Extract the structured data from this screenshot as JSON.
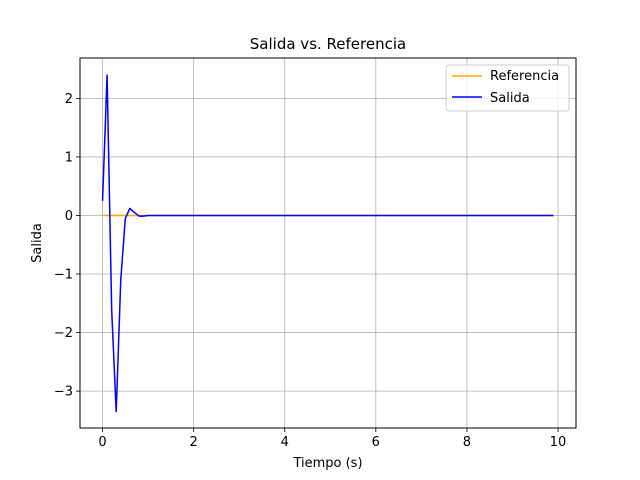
{
  "chart_data": {
    "type": "line",
    "title": "Salida vs. Referencia",
    "xlabel": "Tiempo (s)",
    "ylabel": "Salida",
    "xlim": [
      -0.495,
      10.395
    ],
    "ylim": [
      -3.63,
      2.69
    ],
    "xticks": [
      0,
      2,
      4,
      6,
      8,
      10
    ],
    "yticks": [
      -3,
      -2,
      -1,
      0,
      1,
      2
    ],
    "xtick_labels": [
      "0",
      "2",
      "4",
      "6",
      "8",
      "10"
    ],
    "ytick_labels": [
      "−3",
      "−2",
      "−1",
      "0",
      "1",
      "2"
    ],
    "grid": true,
    "legend_position": "top-right",
    "series": [
      {
        "name": "Referencia",
        "color": "#ffa500",
        "x": [
          0,
          0.1,
          0.2,
          0.3,
          0.4,
          0.5,
          0.6,
          0.7,
          0.8,
          0.9,
          1.0,
          9.9
        ],
        "y": [
          0,
          0,
          0,
          0,
          0,
          0,
          0,
          0,
          0,
          0,
          0,
          0
        ]
      },
      {
        "name": "Salida",
        "color": "#0000ff",
        "x": [
          0,
          0.1,
          0.2,
          0.3,
          0.4,
          0.5,
          0.6,
          0.7,
          0.8,
          0.9,
          1.0,
          1.1,
          9.9
        ],
        "y": [
          0.25,
          2.4,
          -1.6,
          -3.35,
          -1.1,
          -0.05,
          0.12,
          0.05,
          -0.01,
          -0.01,
          0,
          0,
          0
        ]
      }
    ]
  }
}
